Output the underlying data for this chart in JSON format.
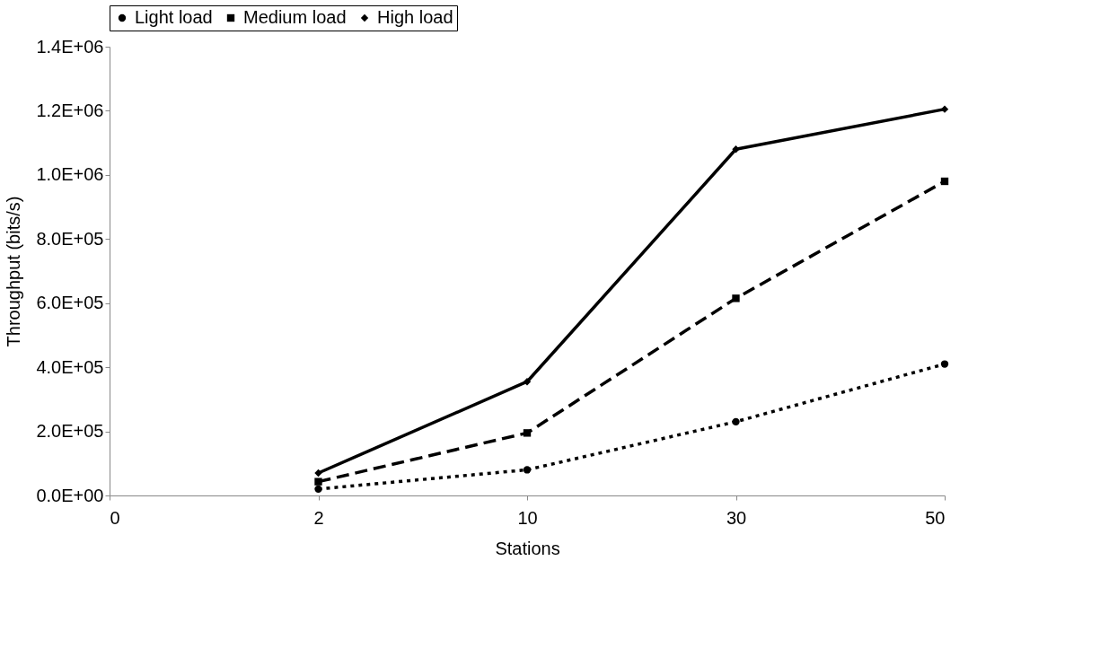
{
  "chart_data": {
    "type": "line",
    "xlabel": "Stations",
    "ylabel": "Throughput (bits/s)",
    "categories": [
      "0",
      "2",
      "10",
      "30",
      "50"
    ],
    "series": [
      {
        "name": "Light load",
        "color": "#000000",
        "line_style": "dotted",
        "marker": "circle",
        "values": [
          null,
          20000,
          80000,
          230000,
          410000
        ]
      },
      {
        "name": "Medium load",
        "color": "#000000",
        "line_style": "dashed",
        "marker": "square",
        "values": [
          null,
          43000,
          195000,
          615000,
          980000
        ]
      },
      {
        "name": "High load",
        "color": "#000000",
        "line_style": "solid",
        "marker": "diamond",
        "values": [
          null,
          70000,
          355000,
          1080000,
          1205000
        ]
      }
    ],
    "ylim": [
      0,
      1400000
    ],
    "yticks": [
      {
        "value": 0,
        "label": "0.0E+00"
      },
      {
        "value": 200000,
        "label": "2.0E+05"
      },
      {
        "value": 400000,
        "label": "4.0E+05"
      },
      {
        "value": 600000,
        "label": "6.0E+05"
      },
      {
        "value": 800000,
        "label": "8.0E+05"
      },
      {
        "value": 1000000,
        "label": "1.0E+06"
      },
      {
        "value": 1200000,
        "label": "1.2E+06"
      },
      {
        "value": 1400000,
        "label": "1.4E+06"
      }
    ],
    "grid": false,
    "legend": "top"
  }
}
